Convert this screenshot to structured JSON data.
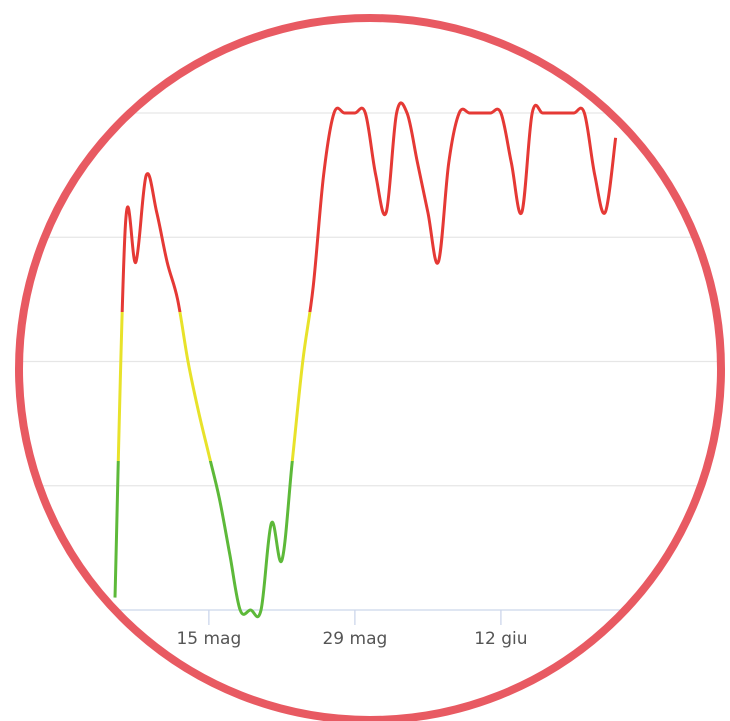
{
  "chart_data": {
    "type": "line",
    "categories": [
      null,
      null,
      null,
      null,
      null,
      null,
      null,
      null,
      null,
      "15 mag",
      null,
      null,
      null,
      null,
      null,
      null,
      null,
      null,
      null,
      null,
      null,
      null,
      null,
      "29 mag",
      null,
      null,
      null,
      null,
      null,
      null,
      null,
      null,
      null,
      null,
      null,
      null,
      null,
      "12 giu",
      null,
      null,
      null,
      null,
      null,
      null,
      null,
      null,
      null,
      null,
      null
    ],
    "values": [
      0.1,
      3.1,
      2.8,
      3.5,
      3.2,
      2.8,
      2.5,
      2.0,
      1.6,
      1.25,
      0.9,
      0.45,
      0,
      0,
      0,
      0.7,
      0.4,
      1.2,
      2.0,
      2.6,
      3.5,
      4,
      4,
      4,
      4,
      3.5,
      3.2,
      4,
      4,
      3.6,
      3.2,
      2.8,
      3.6,
      4,
      4,
      4,
      4,
      4,
      3.6,
      3.2,
      4,
      4,
      4,
      4,
      4,
      4,
      3.5,
      3.2,
      3.8
    ],
    "zones": [
      {
        "value": 1.2,
        "color": "#5db939"
      },
      {
        "value": 2.4,
        "color": "#e8e22a"
      },
      {
        "color": "#e53935"
      }
    ],
    "ylim": [
      0,
      4
    ],
    "yticks": [
      0,
      1,
      2,
      3,
      4
    ],
    "grid": true,
    "frame_color": "#e85a62"
  }
}
